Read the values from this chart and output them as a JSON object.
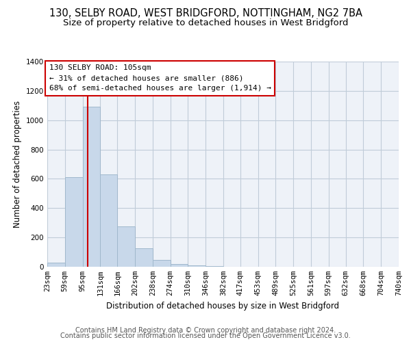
{
  "title1": "130, SELBY ROAD, WEST BRIDGFORD, NOTTINGHAM, NG2 7BA",
  "title2": "Size of property relative to detached houses in West Bridgford",
  "xlabel": "Distribution of detached houses by size in West Bridgford",
  "ylabel": "Number of detached properties",
  "bin_edges": [
    23,
    59,
    95,
    131,
    166,
    202,
    238,
    274,
    310,
    346,
    382,
    417,
    453,
    489,
    525,
    561,
    597,
    632,
    668,
    704,
    740
  ],
  "bar_heights": [
    30,
    610,
    1090,
    630,
    275,
    125,
    45,
    20,
    10,
    5,
    2,
    2,
    1,
    0,
    0,
    0,
    0,
    0,
    0,
    0
  ],
  "bar_color": "#c8d8ea",
  "bar_edge_color": "#a0b8cc",
  "grid_color": "#c0ccd8",
  "bg_color": "#eef2f8",
  "vline_x": 105,
  "vline_color": "#cc0000",
  "annotation_text": "130 SELBY ROAD: 105sqm\n← 31% of detached houses are smaller (886)\n68% of semi-detached houses are larger (1,914) →",
  "annotation_box_color": "#cc0000",
  "ylim": [
    0,
    1400
  ],
  "yticks": [
    0,
    200,
    400,
    600,
    800,
    1000,
    1200,
    1400
  ],
  "footer1": "Contains HM Land Registry data © Crown copyright and database right 2024.",
  "footer2": "Contains public sector information licensed under the Open Government Licence v3.0.",
  "title1_fontsize": 10.5,
  "title2_fontsize": 9.5,
  "xlabel_fontsize": 8.5,
  "ylabel_fontsize": 8.5,
  "tick_fontsize": 7.5,
  "annot_fontsize": 8,
  "footer_fontsize": 7
}
